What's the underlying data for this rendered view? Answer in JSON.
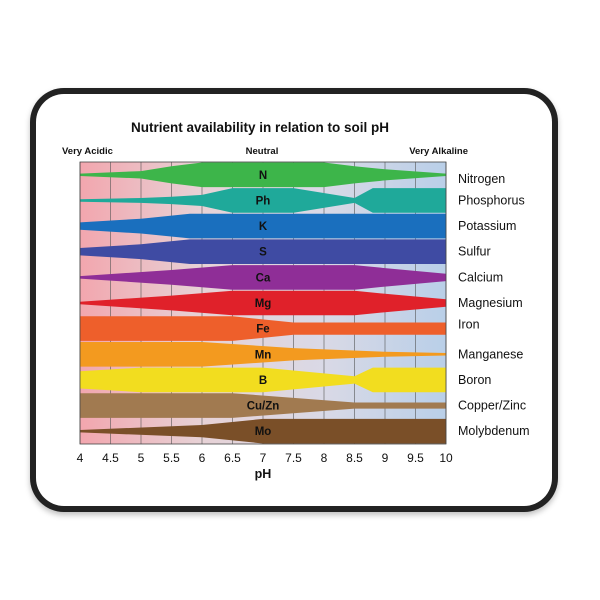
{
  "chart_data": {
    "type": "area",
    "title": "Nutrient availability in relation to soil pH",
    "xlabel": "pH",
    "ylabel": "",
    "xlim": [
      4,
      10
    ],
    "x_ticks": [
      "4",
      "4.5",
      "5",
      "5.5",
      "6",
      "6.5",
      "7",
      "7.5",
      "8",
      "8.5",
      "9",
      "9.5",
      "10"
    ],
    "region_labels": {
      "left": "Very Acidic",
      "center": "Neutral",
      "right": "Very Alkaline"
    },
    "background_gradient": [
      "#f2a6ae",
      "#e7d2d6",
      "#d9d9e6",
      "#b9cfe8"
    ],
    "series": [
      {
        "name": "Nitrogen",
        "label": "N",
        "color": "#3db54a",
        "profile": [
          [
            4,
            0.1
          ],
          [
            5,
            0.3
          ],
          [
            5.5,
            0.7
          ],
          [
            6,
            1
          ],
          [
            8,
            1
          ],
          [
            8.5,
            0.7
          ],
          [
            9,
            0.45
          ],
          [
            10,
            0.1
          ]
        ]
      },
      {
        "name": "Phosphorus",
        "label": "Ph",
        "color": "#1fa99a",
        "profile": [
          [
            4,
            0.1
          ],
          [
            5,
            0.2
          ],
          [
            5.5,
            0.3
          ],
          [
            6,
            0.45
          ],
          [
            6.5,
            1
          ],
          [
            7.5,
            1
          ],
          [
            8.5,
            0.2
          ],
          [
            8.8,
            1
          ],
          [
            10,
            1
          ]
        ]
      },
      {
        "name": "Potassium",
        "label": "K",
        "color": "#1a6fbe",
        "profile": [
          [
            4,
            0.3
          ],
          [
            5,
            0.6
          ],
          [
            5.8,
            1
          ],
          [
            10,
            1
          ]
        ]
      },
      {
        "name": "Sulfur",
        "label": "S",
        "color": "#3f4ba3",
        "profile": [
          [
            4,
            0.3
          ],
          [
            5,
            0.6
          ],
          [
            5.8,
            1
          ],
          [
            10,
            1
          ]
        ]
      },
      {
        "name": "Calcium",
        "label": "Ca",
        "color": "#8f2e97",
        "profile": [
          [
            4,
            0.1
          ],
          [
            5.5,
            0.6
          ],
          [
            6.5,
            1
          ],
          [
            8.5,
            1
          ],
          [
            9,
            0.75
          ],
          [
            10,
            0.3
          ]
        ]
      },
      {
        "name": "Magnesium",
        "label": "Mg",
        "color": "#e0212a",
        "profile": [
          [
            4,
            0.1
          ],
          [
            5.5,
            0.6
          ],
          [
            6.5,
            1
          ],
          [
            8.5,
            1
          ],
          [
            9,
            0.75
          ],
          [
            10,
            0.3
          ]
        ]
      },
      {
        "name": "Iron",
        "label": "Fe",
        "color": "#ee5f2b",
        "profile": [
          [
            4,
            1
          ],
          [
            6.5,
            1
          ],
          [
            7.5,
            0.5
          ],
          [
            10,
            0.5
          ]
        ]
      },
      {
        "name": "Manganese",
        "label": "Mn",
        "color": "#f39a1f",
        "profile": [
          [
            4,
            1
          ],
          [
            6,
            1
          ],
          [
            7.5,
            0.5
          ],
          [
            9,
            0.2
          ],
          [
            10,
            0.1
          ]
        ]
      },
      {
        "name": "Boron",
        "label": "B",
        "color": "#f2dd1f",
        "profile": [
          [
            4,
            0.7
          ],
          [
            5,
            1
          ],
          [
            7,
            1
          ],
          [
            8.5,
            0.3
          ],
          [
            8.8,
            1
          ],
          [
            10,
            1
          ]
        ]
      },
      {
        "name": "Copper/Zinc",
        "label": "Cu/Zn",
        "color": "#a17a50",
        "profile": [
          [
            4,
            1
          ],
          [
            6.5,
            1
          ],
          [
            8.5,
            0.25
          ],
          [
            10,
            0.25
          ]
        ]
      },
      {
        "name": "Molybdenum",
        "label": "Mo",
        "color": "#7a4f28",
        "profile": [
          [
            4,
            0.1
          ],
          [
            6,
            0.5
          ],
          [
            7,
            1
          ],
          [
            10,
            1
          ]
        ]
      }
    ]
  }
}
